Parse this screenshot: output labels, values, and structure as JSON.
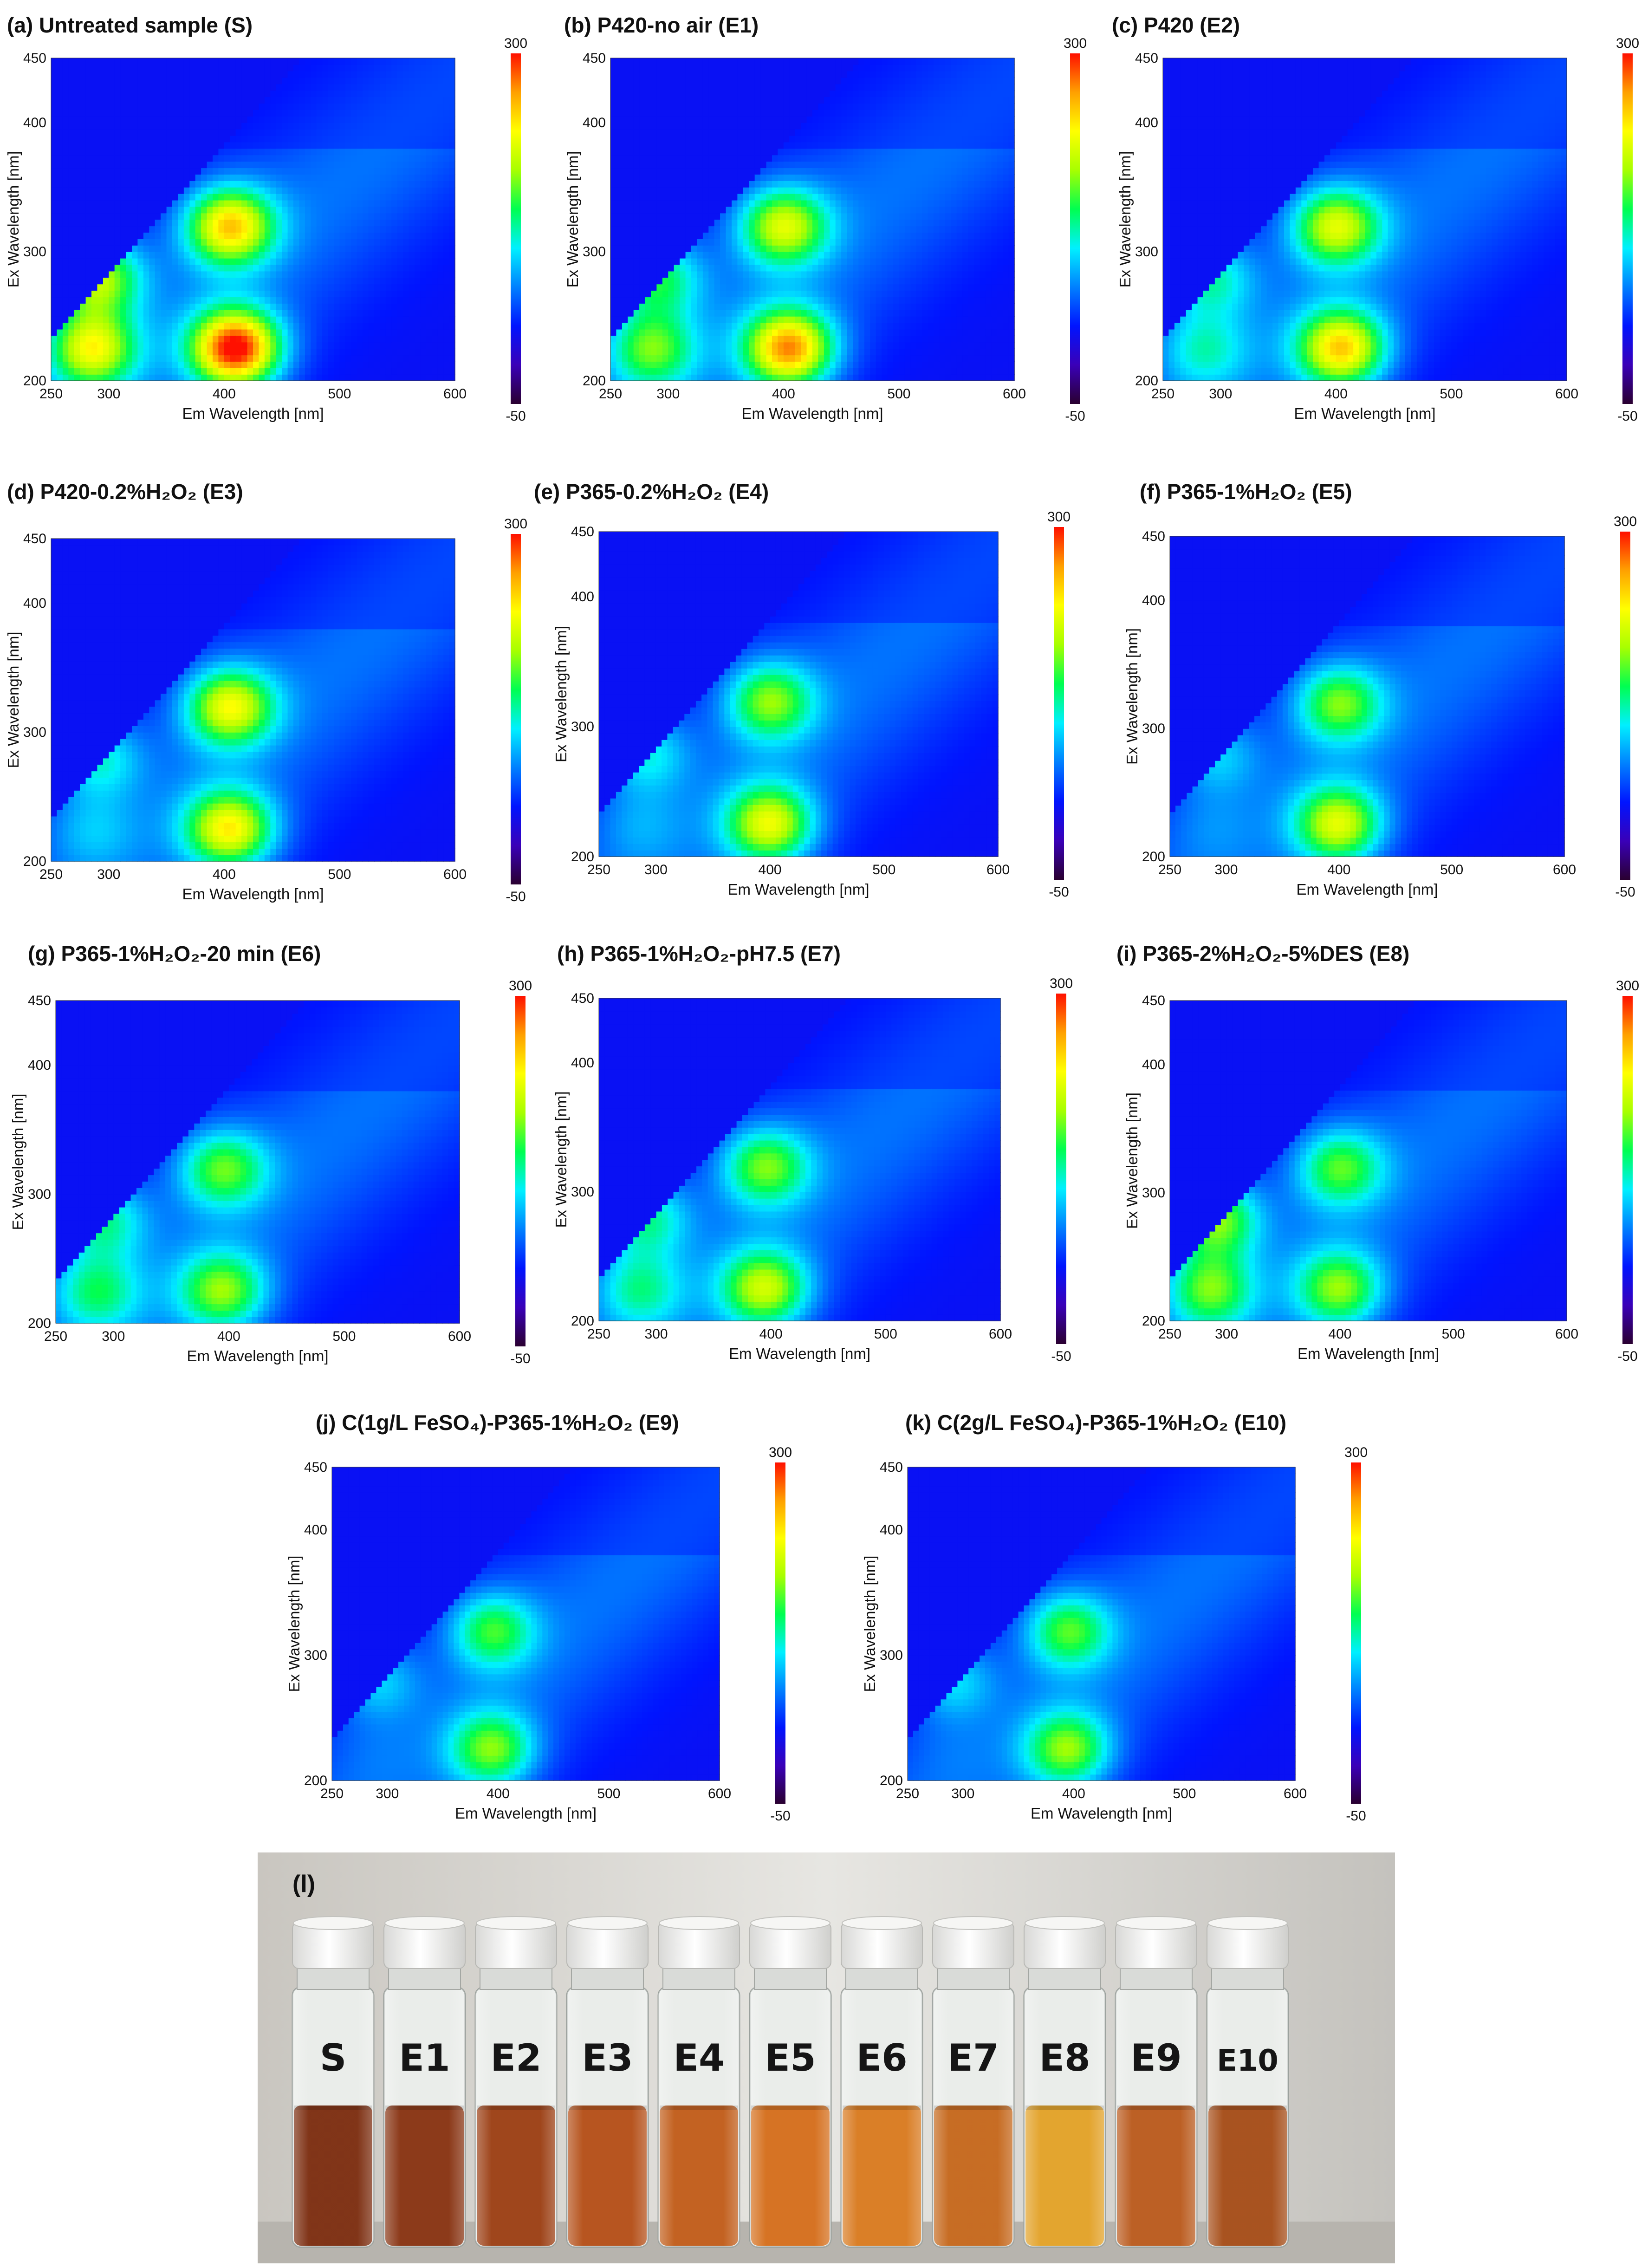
{
  "figure": {
    "x_axis_label": "Em Wavelength [nm]",
    "y_axis_label": "Ex Wavelength [nm]",
    "x_ticks": [
      "250",
      "300",
      "400",
      "500",
      "600"
    ],
    "y_ticks": [
      "200",
      "300",
      "400",
      "450"
    ],
    "colorbar_ticks": [
      "300",
      "-50"
    ],
    "colors": {
      "background": "#0a2aff",
      "colormap": [
        "#2a0030",
        "#3a00b8",
        "#0014ff",
        "#0080ff",
        "#00f0ff",
        "#00ff50",
        "#a8ff00",
        "#ffff00",
        "#ffa000",
        "#ff1000"
      ]
    }
  },
  "chart_data": [
    {
      "type": "heatmap",
      "panel": "a",
      "title": "(a) Untreated sample (S)",
      "xlabel": "Em Wavelength [nm]",
      "ylabel": "Ex Wavelength [nm]",
      "xlim": [
        250,
        600
      ],
      "ylim": [
        200,
        450
      ],
      "clim": [
        -50,
        300
      ],
      "peaks": [
        {
          "em": 410,
          "ex": 225,
          "intensity": 285
        },
        {
          "em": 405,
          "ex": 320,
          "intensity": 215
        },
        {
          "em": 285,
          "ex": 225,
          "intensity": 190
        },
        {
          "em": 290,
          "ex": 280,
          "intensity": 175
        }
      ]
    },
    {
      "type": "heatmap",
      "panel": "b",
      "title": "(b) P420-no air (E1)",
      "xlabel": "Em Wavelength [nm]",
      "ylabel": "Ex Wavelength [nm]",
      "xlim": [
        250,
        600
      ],
      "ylim": [
        200,
        450
      ],
      "clim": [
        -50,
        300
      ],
      "peaks": [
        {
          "em": 405,
          "ex": 225,
          "intensity": 240
        },
        {
          "em": 400,
          "ex": 320,
          "intensity": 180
        },
        {
          "em": 285,
          "ex": 225,
          "intensity": 140
        },
        {
          "em": 290,
          "ex": 280,
          "intensity": 130
        }
      ]
    },
    {
      "type": "heatmap",
      "panel": "c",
      "title": "(c) P420 (E2)",
      "xlabel": "Em Wavelength [nm]",
      "ylabel": "Ex Wavelength [nm]",
      "xlim": [
        250,
        600
      ],
      "ylim": [
        200,
        450
      ],
      "clim": [
        -50,
        300
      ],
      "peaks": [
        {
          "em": 405,
          "ex": 225,
          "intensity": 215
        },
        {
          "em": 400,
          "ex": 320,
          "intensity": 180
        },
        {
          "em": 285,
          "ex": 225,
          "intensity": 90
        },
        {
          "em": 290,
          "ex": 280,
          "intensity": 110
        }
      ]
    },
    {
      "type": "heatmap",
      "panel": "d",
      "title": "(d) P420-0.2%H₂O₂ (E3)",
      "xlabel": "Em Wavelength [nm]",
      "ylabel": "Ex Wavelength [nm]",
      "xlim": [
        250,
        600
      ],
      "ylim": [
        200,
        450
      ],
      "clim": [
        -50,
        300
      ],
      "peaks": [
        {
          "em": 405,
          "ex": 225,
          "intensity": 200
        },
        {
          "em": 405,
          "ex": 320,
          "intensity": 190
        },
        {
          "em": 285,
          "ex": 225,
          "intensity": 60
        },
        {
          "em": 290,
          "ex": 280,
          "intensity": 100
        }
      ]
    },
    {
      "type": "heatmap",
      "panel": "e",
      "title": "(e) P365-0.2%H₂O₂ (E4)",
      "xlabel": "Em Wavelength [nm]",
      "ylabel": "Ex Wavelength [nm]",
      "xlim": [
        250,
        600
      ],
      "ylim": [
        200,
        450
      ],
      "clim": [
        -50,
        300
      ],
      "peaks": [
        {
          "em": 400,
          "ex": 225,
          "intensity": 185
        },
        {
          "em": 400,
          "ex": 320,
          "intensity": 150
        },
        {
          "em": 285,
          "ex": 225,
          "intensity": 50
        },
        {
          "em": 290,
          "ex": 280,
          "intensity": 95
        }
      ]
    },
    {
      "type": "heatmap",
      "panel": "f",
      "title": "(f) P365-1%H₂O₂ (E5)",
      "xlabel": "Em Wavelength [nm]",
      "ylabel": "Ex Wavelength [nm]",
      "xlim": [
        250,
        600
      ],
      "ylim": [
        200,
        450
      ],
      "clim": [
        -50,
        300
      ],
      "peaks": [
        {
          "em": 400,
          "ex": 225,
          "intensity": 180
        },
        {
          "em": 400,
          "ex": 320,
          "intensity": 145
        },
        {
          "em": 285,
          "ex": 225,
          "intensity": 40
        },
        {
          "em": 290,
          "ex": 280,
          "intensity": 80
        }
      ]
    },
    {
      "type": "heatmap",
      "panel": "g",
      "title": "(g) P365-1%H₂O₂-20 min (E6)",
      "xlabel": "Em Wavelength [nm]",
      "ylabel": "Ex Wavelength [nm]",
      "xlim": [
        250,
        600
      ],
      "ylim": [
        200,
        450
      ],
      "clim": [
        -50,
        300
      ],
      "peaks": [
        {
          "em": 395,
          "ex": 225,
          "intensity": 150
        },
        {
          "em": 395,
          "ex": 320,
          "intensity": 140
        },
        {
          "em": 285,
          "ex": 225,
          "intensity": 110
        },
        {
          "em": 290,
          "ex": 280,
          "intensity": 115
        }
      ]
    },
    {
      "type": "heatmap",
      "panel": "h",
      "title": "(h) P365-1%H₂O₂-pH7.5 (E7)",
      "xlabel": "Em Wavelength [nm]",
      "ylabel": "Ex Wavelength [nm]",
      "xlim": [
        250,
        600
      ],
      "ylim": [
        200,
        450
      ],
      "clim": [
        -50,
        300
      ],
      "peaks": [
        {
          "em": 395,
          "ex": 225,
          "intensity": 170
        },
        {
          "em": 395,
          "ex": 320,
          "intensity": 145
        },
        {
          "em": 285,
          "ex": 225,
          "intensity": 100
        },
        {
          "em": 290,
          "ex": 280,
          "intensity": 115
        }
      ]
    },
    {
      "type": "heatmap",
      "panel": "i",
      "title": "(i) P365-2%H₂O₂-5%DES (E8)",
      "xlabel": "Em Wavelength [nm]",
      "ylabel": "Ex Wavelength [nm]",
      "xlim": [
        250,
        600
      ],
      "ylim": [
        200,
        450
      ],
      "clim": [
        -50,
        300
      ],
      "peaks": [
        {
          "em": 400,
          "ex": 225,
          "intensity": 150
        },
        {
          "em": 400,
          "ex": 320,
          "intensity": 135
        },
        {
          "em": 285,
          "ex": 225,
          "intensity": 140
        },
        {
          "em": 290,
          "ex": 280,
          "intensity": 160
        }
      ]
    },
    {
      "type": "heatmap",
      "panel": "j",
      "title": "(j) C(1g/L FeSO₄)-P365-1%H₂O₂ (E9)",
      "xlabel": "Em Wavelength [nm]",
      "ylabel": "Ex Wavelength [nm]",
      "xlim": [
        250,
        600
      ],
      "ylim": [
        200,
        450
      ],
      "clim": [
        -50,
        300
      ],
      "peaks": [
        {
          "em": 395,
          "ex": 225,
          "intensity": 145
        },
        {
          "em": 395,
          "ex": 320,
          "intensity": 130
        },
        {
          "em": 285,
          "ex": 225,
          "intensity": 30
        },
        {
          "em": 290,
          "ex": 280,
          "intensity": 80
        }
      ]
    },
    {
      "type": "heatmap",
      "panel": "k",
      "title": "(k) C(2g/L FeSO₄)-P365-1%H₂O₂  (E10)",
      "xlabel": "Em Wavelength [nm]",
      "ylabel": "Ex Wavelength [nm]",
      "xlim": [
        250,
        600
      ],
      "ylim": [
        200,
        450
      ],
      "clim": [
        -50,
        300
      ],
      "peaks": [
        {
          "em": 395,
          "ex": 225,
          "intensity": 150
        },
        {
          "em": 395,
          "ex": 320,
          "intensity": 135
        },
        {
          "em": 285,
          "ex": 225,
          "intensity": 30
        },
        {
          "em": 290,
          "ex": 280,
          "intensity": 85
        }
      ]
    }
  ],
  "photo": {
    "label": "(l)",
    "vials": [
      {
        "label": "S",
        "liquid_color": "#7a2a0c"
      },
      {
        "label": "E1",
        "liquid_color": "#86300e"
      },
      {
        "label": "E2",
        "liquid_color": "#9a3c10"
      },
      {
        "label": "E3",
        "liquid_color": "#b34c14"
      },
      {
        "label": "E4",
        "liquid_color": "#c05a16"
      },
      {
        "label": "E5",
        "liquid_color": "#d46c18"
      },
      {
        "label": "E6",
        "liquid_color": "#d8781c"
      },
      {
        "label": "E7",
        "liquid_color": "#c46518"
      },
      {
        "label": "E8",
        "liquid_color": "#e2a024"
      },
      {
        "label": "E9",
        "liquid_color": "#b9581a"
      },
      {
        "label": "E10",
        "liquid_color": "#a44a14"
      }
    ]
  }
}
